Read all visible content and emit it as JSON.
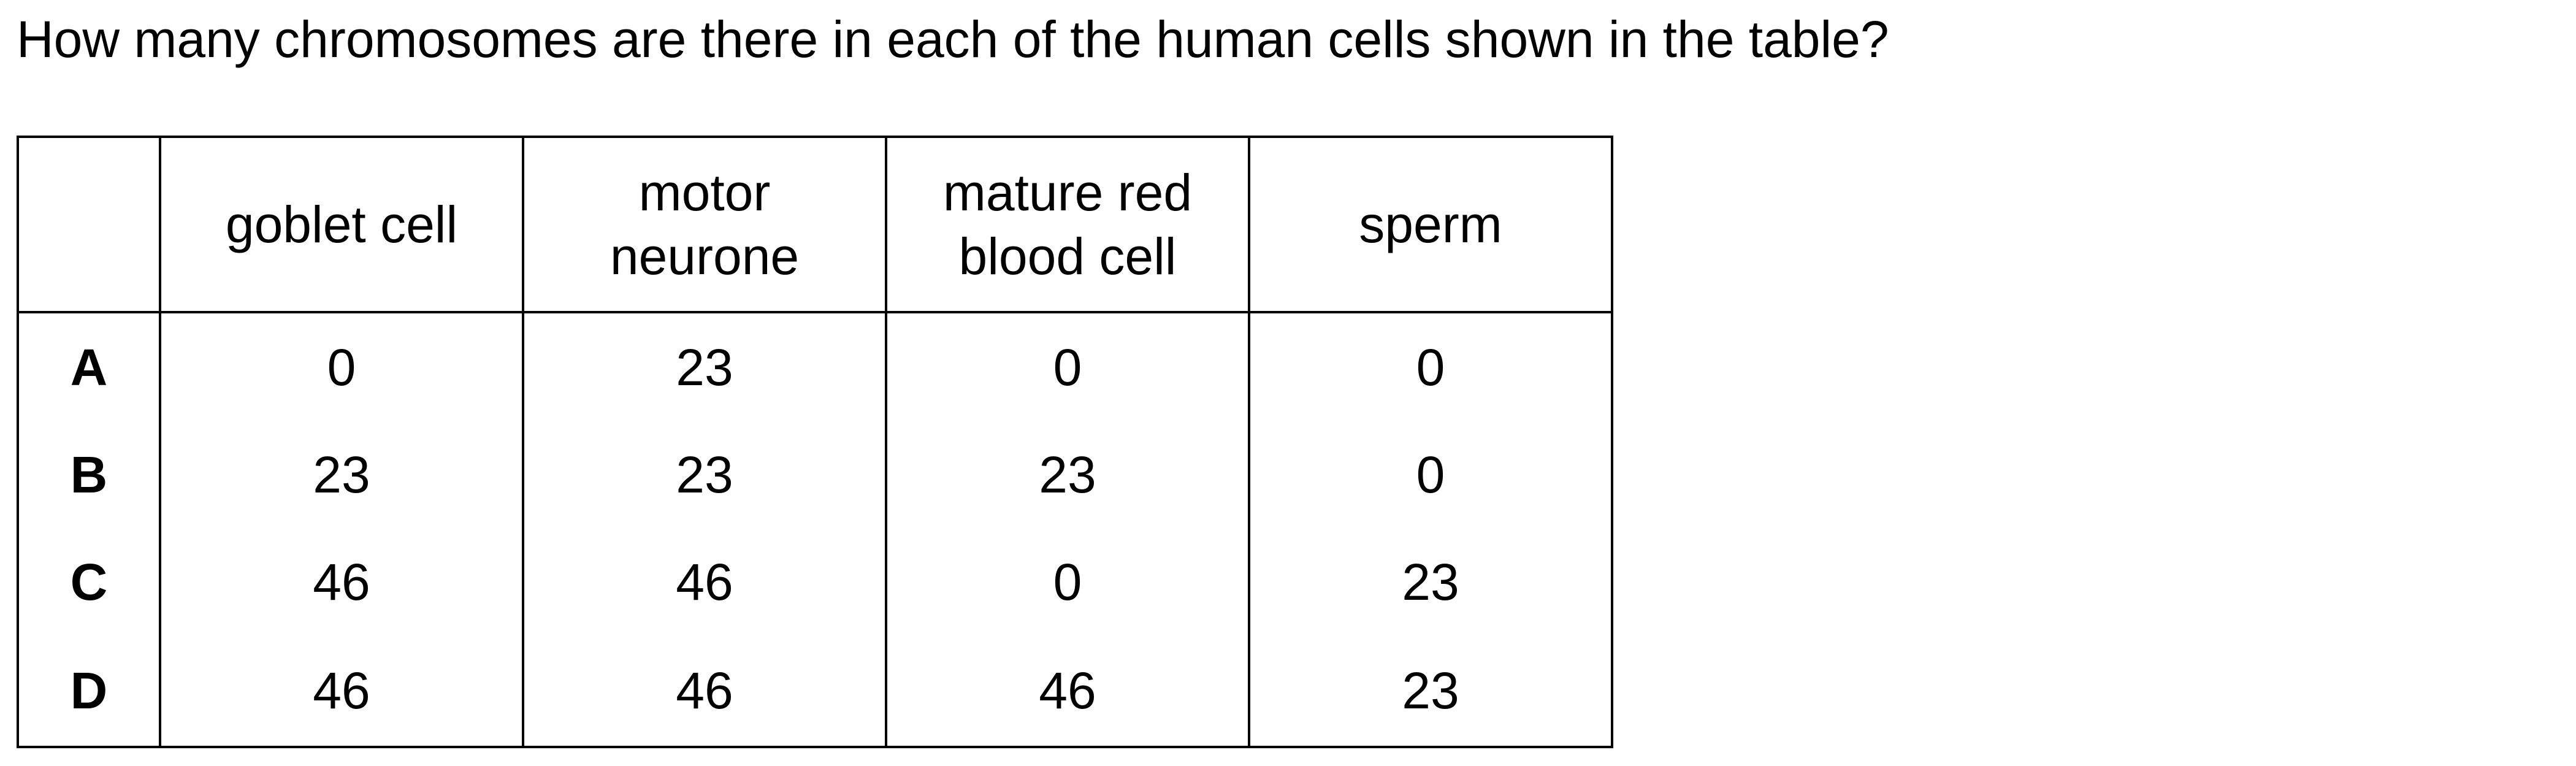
{
  "question": {
    "text": "How many chromosomes are there in each of the human cells shown in the table?"
  },
  "table": {
    "corner": "",
    "headers": [
      [
        "goblet cell"
      ],
      [
        "motor",
        "neurone"
      ],
      [
        "mature red",
        "blood cell"
      ],
      [
        "sperm"
      ]
    ],
    "rows": [
      {
        "letter": "A",
        "values": [
          "0",
          "23",
          "0",
          "0"
        ]
      },
      {
        "letter": "B",
        "values": [
          "23",
          "23",
          "23",
          "0"
        ]
      },
      {
        "letter": "C",
        "values": [
          "46",
          "46",
          "0",
          "23"
        ]
      },
      {
        "letter": "D",
        "values": [
          "46",
          "46",
          "46",
          "23"
        ]
      }
    ]
  }
}
